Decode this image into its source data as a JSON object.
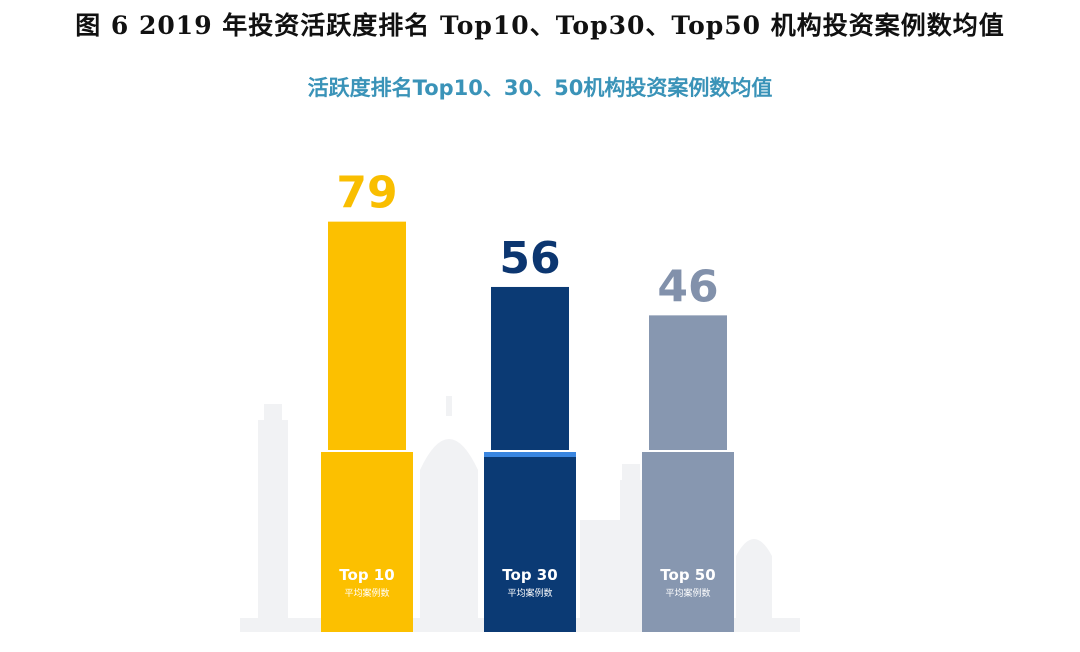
{
  "figure_caption": "图 6 2019 年投资活跃度排名 Top10、Top30、Top50 机构投资案例数均值",
  "chart_data": {
    "type": "bar",
    "title": "活跃度排名Top10、30、50机构投资案例数均值",
    "categories": [
      "Top 10",
      "Top 30",
      "Top 50"
    ],
    "category_sublabel": "平均案例数",
    "values": [
      79,
      56,
      46
    ],
    "colors": {
      "bar": [
        "#fcc000",
        "#0b3a74",
        "#8797b0"
      ],
      "base_band": [
        "#fcc000",
        "#0b3a74",
        "#8797b0"
      ],
      "value_label": [
        "#f9be00",
        "#0c3670",
        "#8291ab"
      ],
      "band_highlight": [
        "#fcc000",
        "#3a86e0",
        "#8797b0"
      ]
    },
    "xlabel": "",
    "ylabel": ""
  }
}
